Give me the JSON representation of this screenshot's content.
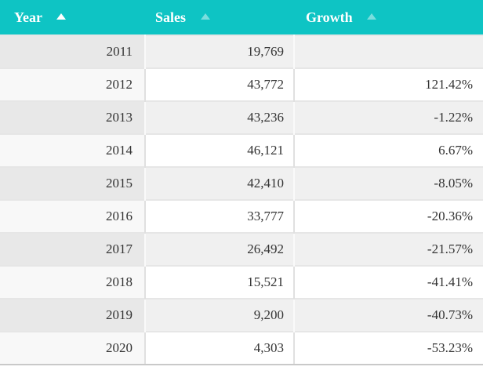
{
  "colors": {
    "header_bg": "#0ec4c4",
    "header_text": "#ffffff",
    "active_sort_arrow": "#ffffff",
    "inactive_sort_arrow": "rgba(255,255,255,0.45)",
    "odd_row_bg": "#f0f0f0",
    "odd_row_sorted_col_bg": "#e8e8e8",
    "even_row_sorted_col_bg": "#f8f8f8"
  },
  "table": {
    "columns": [
      {
        "label": "Year",
        "sort_state": "active-asc"
      },
      {
        "label": "Sales",
        "sort_state": "inactive-asc"
      },
      {
        "label": "Growth",
        "sort_state": "inactive-asc"
      }
    ],
    "rows": [
      {
        "year": "2011",
        "sales": "19,769",
        "growth": ""
      },
      {
        "year": "2012",
        "sales": "43,772",
        "growth": "121.42%"
      },
      {
        "year": "2013",
        "sales": "43,236",
        "growth": "-1.22%"
      },
      {
        "year": "2014",
        "sales": "46,121",
        "growth": "6.67%"
      },
      {
        "year": "2015",
        "sales": "42,410",
        "growth": "-8.05%"
      },
      {
        "year": "2016",
        "sales": "33,777",
        "growth": "-20.36%"
      },
      {
        "year": "2017",
        "sales": "26,492",
        "growth": "-21.57%"
      },
      {
        "year": "2018",
        "sales": "15,521",
        "growth": "-41.41%"
      },
      {
        "year": "2019",
        "sales": "9,200",
        "growth": "-40.73%"
      },
      {
        "year": "2020",
        "sales": "4,303",
        "growth": "-53.23%"
      }
    ]
  },
  "chart_data": {
    "type": "table",
    "columns": [
      "Year",
      "Sales",
      "Growth"
    ],
    "rows": [
      [
        2011,
        19769,
        null
      ],
      [
        2012,
        43772,
        121.42
      ],
      [
        2013,
        43236,
        -1.22
      ],
      [
        2014,
        46121,
        6.67
      ],
      [
        2015,
        42410,
        -8.05
      ],
      [
        2016,
        33777,
        -20.36
      ],
      [
        2017,
        26492,
        -21.57
      ],
      [
        2018,
        15521,
        -41.41
      ],
      [
        2019,
        9200,
        -40.73
      ],
      [
        2020,
        4303,
        -53.23
      ]
    ]
  }
}
